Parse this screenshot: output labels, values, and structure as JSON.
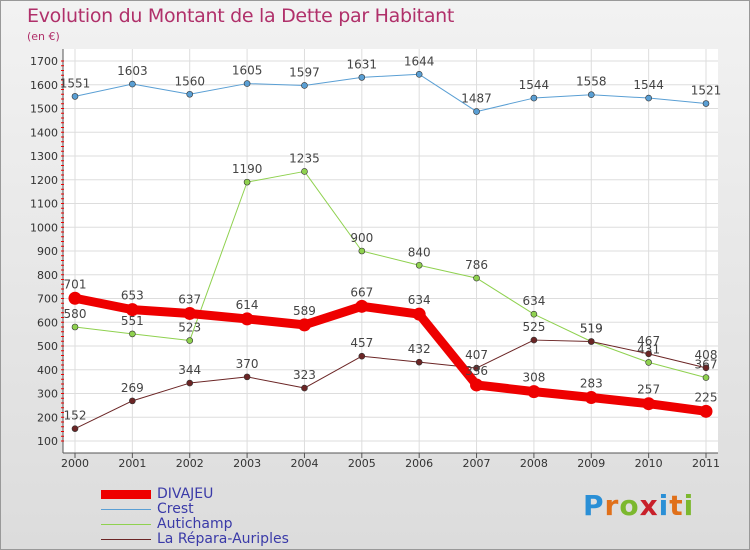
{
  "header": {
    "title": "Evolution du Montant de la Dette par Habitant",
    "subtitle": "(en €)"
  },
  "logo": {
    "letters": [
      "P",
      "r",
      "o",
      "x",
      "i",
      "t",
      "i"
    ],
    "colors": [
      "#2a8fd6",
      "#e0701a",
      "#7cb82e",
      "#c8202a",
      "#2a8fd6",
      "#e0701a",
      "#7cb82e"
    ]
  },
  "chart_data": {
    "type": "line",
    "title": "Evolution du Montant de la Dette par Habitant",
    "subtitle": "(en €)",
    "x": [
      "2000",
      "2001",
      "2002",
      "2003",
      "2004",
      "2005",
      "2006",
      "2007",
      "2008",
      "2009",
      "2010",
      "2011"
    ],
    "ylim": [
      100,
      1700
    ],
    "yticks": [
      100,
      200,
      300,
      400,
      500,
      600,
      700,
      800,
      900,
      1000,
      1100,
      1200,
      1300,
      1400,
      1500,
      1600,
      1700
    ],
    "grid": true,
    "legend_position": "bottom-left",
    "series": [
      {
        "name": "Crest",
        "color": "#5a9fd4",
        "width": 1,
        "values": [
          1551,
          1603,
          1560,
          1605,
          1597,
          1631,
          1644,
          1487,
          1544,
          1558,
          1544,
          1521
        ]
      },
      {
        "name": "Autichamp",
        "color": "#8fd14f",
        "width": 1,
        "values": [
          580,
          551,
          523,
          1190,
          1235,
          900,
          840,
          786,
          634,
          519,
          431,
          367
        ]
      },
      {
        "name": "La Répara-Auriples",
        "color": "#6b2525",
        "width": 1,
        "values": [
          152,
          269,
          344,
          370,
          323,
          457,
          432,
          407,
          525,
          519,
          467,
          408
        ]
      },
      {
        "name": "DIVAJEU",
        "color": "#ee0000",
        "width": 9,
        "values": [
          701,
          653,
          637,
          614,
          589,
          667,
          634,
          336,
          308,
          283,
          257,
          225
        ]
      }
    ],
    "legend_order": [
      "DIVAJEU",
      "Crest",
      "Autichamp",
      "La Répara-Auriples"
    ]
  }
}
